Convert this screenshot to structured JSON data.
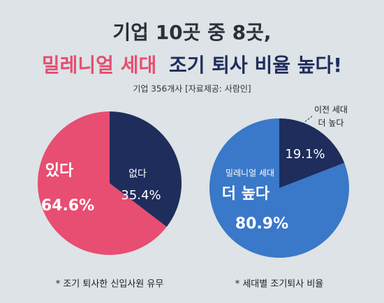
{
  "header": {
    "title_line1": "기업 10곳 중 8곳,",
    "title_line2_a": "밀레니얼 세대",
    "title_line2_b": "조기 퇴사 비율 높다!",
    "subtitle": "기업 356개사  [자료제공: 사람인]"
  },
  "chart_data": [
    {
      "type": "pie",
      "caption": "* 조기 퇴사한 신입사원 유무",
      "categories": [
        [
          "있다"
        ],
        [
          "없다"
        ]
      ],
      "values": [
        64.6,
        35.4
      ],
      "value_labels": [
        "64.6%",
        "35.4%"
      ],
      "colors": [
        "#e84d72",
        "#1f2d5c"
      ]
    },
    {
      "type": "pie",
      "caption": "* 세대별 조기퇴사 비율",
      "categories": [
        [
          "밀레니얼 세대",
          "더 높다"
        ],
        [
          "이전 세대",
          "더 높다"
        ]
      ],
      "values": [
        80.9,
        19.1
      ],
      "value_labels": [
        "80.9%",
        "19.1%"
      ],
      "colors": [
        "#3a78c9",
        "#1f2d5c"
      ]
    }
  ]
}
